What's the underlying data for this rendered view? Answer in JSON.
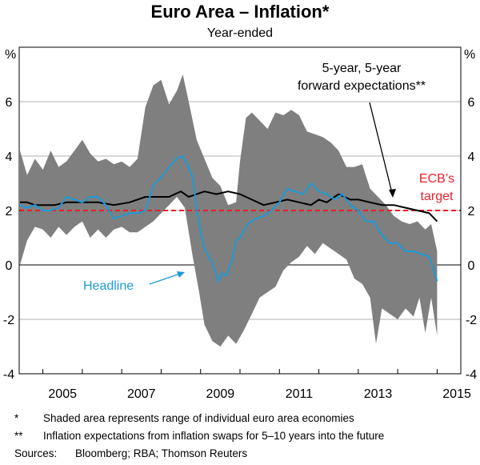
{
  "chart_data": {
    "type": "line",
    "title": "Euro Area – Inflation*",
    "subtitle": "Year-ended",
    "y_unit": "%",
    "ylim": [
      -4,
      8
    ],
    "yticks": [
      -4,
      -2,
      0,
      2,
      4,
      6
    ],
    "xlim": [
      2004.4,
      2015.6
    ],
    "xticks": [
      2005,
      2007,
      2009,
      2011,
      2013,
      2015
    ],
    "target_value": 2,
    "series": [
      {
        "name": "Headline",
        "color": "#1c9ad6",
        "points": [
          [
            2004.42,
            2.2
          ],
          [
            2004.6,
            2.1
          ],
          [
            2004.8,
            2.2
          ],
          [
            2005.0,
            2.0
          ],
          [
            2005.2,
            2.0
          ],
          [
            2005.4,
            2.1
          ],
          [
            2005.6,
            2.5
          ],
          [
            2005.8,
            2.4
          ],
          [
            2006.0,
            2.3
          ],
          [
            2006.2,
            2.5
          ],
          [
            2006.4,
            2.5
          ],
          [
            2006.6,
            2.2
          ],
          [
            2006.8,
            1.7
          ],
          [
            2007.0,
            1.8
          ],
          [
            2007.2,
            1.9
          ],
          [
            2007.4,
            1.9
          ],
          [
            2007.6,
            2.0
          ],
          [
            2007.8,
            2.9
          ],
          [
            2007.9,
            3.1
          ],
          [
            2008.0,
            3.2
          ],
          [
            2008.2,
            3.6
          ],
          [
            2008.4,
            3.9
          ],
          [
            2008.55,
            4.0
          ],
          [
            2008.7,
            3.6
          ],
          [
            2008.8,
            3.2
          ],
          [
            2008.9,
            2.1
          ],
          [
            2009.0,
            1.2
          ],
          [
            2009.1,
            0.6
          ],
          [
            2009.2,
            0.3
          ],
          [
            2009.3,
            0.1
          ],
          [
            2009.45,
            -0.6
          ],
          [
            2009.55,
            -0.3
          ],
          [
            2009.65,
            -0.4
          ],
          [
            2009.8,
            0.2
          ],
          [
            2009.9,
            0.9
          ],
          [
            2010.0,
            1.0
          ],
          [
            2010.2,
            1.5
          ],
          [
            2010.4,
            1.7
          ],
          [
            2010.6,
            1.8
          ],
          [
            2010.8,
            2.0
          ],
          [
            2011.0,
            2.3
          ],
          [
            2011.2,
            2.8
          ],
          [
            2011.4,
            2.7
          ],
          [
            2011.6,
            2.6
          ],
          [
            2011.8,
            3.0
          ],
          [
            2012.0,
            2.7
          ],
          [
            2012.2,
            2.6
          ],
          [
            2012.4,
            2.4
          ],
          [
            2012.6,
            2.6
          ],
          [
            2012.8,
            2.2
          ],
          [
            2013.0,
            2.0
          ],
          [
            2013.2,
            1.6
          ],
          [
            2013.4,
            1.6
          ],
          [
            2013.6,
            1.1
          ],
          [
            2013.8,
            0.8
          ],
          [
            2014.0,
            0.8
          ],
          [
            2014.2,
            0.5
          ],
          [
            2014.4,
            0.5
          ],
          [
            2014.6,
            0.4
          ],
          [
            2014.8,
            0.3
          ],
          [
            2014.92,
            -0.2
          ],
          [
            2015.0,
            -0.6
          ]
        ]
      },
      {
        "name": "5-year, 5-year forward expectations**",
        "color": "#000000",
        "points": [
          [
            2004.42,
            2.3
          ],
          [
            2004.6,
            2.3
          ],
          [
            2004.8,
            2.2
          ],
          [
            2005.0,
            2.2
          ],
          [
            2005.3,
            2.2
          ],
          [
            2005.6,
            2.3
          ],
          [
            2006.0,
            2.3
          ],
          [
            2006.4,
            2.3
          ],
          [
            2006.8,
            2.2
          ],
          [
            2007.2,
            2.3
          ],
          [
            2007.6,
            2.5
          ],
          [
            2007.9,
            2.5
          ],
          [
            2008.2,
            2.5
          ],
          [
            2008.5,
            2.7
          ],
          [
            2008.7,
            2.5
          ],
          [
            2008.9,
            2.6
          ],
          [
            2009.1,
            2.7
          ],
          [
            2009.4,
            2.6
          ],
          [
            2009.7,
            2.7
          ],
          [
            2010.0,
            2.6
          ],
          [
            2010.3,
            2.4
          ],
          [
            2010.6,
            2.2
          ],
          [
            2010.9,
            2.3
          ],
          [
            2011.2,
            2.4
          ],
          [
            2011.5,
            2.3
          ],
          [
            2011.8,
            2.2
          ],
          [
            2012.0,
            2.4
          ],
          [
            2012.2,
            2.3
          ],
          [
            2012.5,
            2.6
          ],
          [
            2012.8,
            2.4
          ],
          [
            2013.0,
            2.4
          ],
          [
            2013.3,
            2.3
          ],
          [
            2013.6,
            2.2
          ],
          [
            2013.9,
            2.2
          ],
          [
            2014.2,
            2.1
          ],
          [
            2014.5,
            2.0
          ],
          [
            2014.8,
            1.9
          ],
          [
            2015.0,
            1.6
          ]
        ]
      }
    ],
    "range_band": {
      "name": "Range of individual euro area economies",
      "color": "#7f7f7f",
      "upper": [
        [
          2004.42,
          4.2
        ],
        [
          2004.6,
          3.3
        ],
        [
          2004.8,
          3.9
        ],
        [
          2005.0,
          3.5
        ],
        [
          2005.2,
          4.2
        ],
        [
          2005.4,
          3.6
        ],
        [
          2005.6,
          3.8
        ],
        [
          2005.8,
          4.2
        ],
        [
          2006.0,
          4.6
        ],
        [
          2006.2,
          4.1
        ],
        [
          2006.4,
          3.8
        ],
        [
          2006.6,
          3.9
        ],
        [
          2006.8,
          3.7
        ],
        [
          2007.0,
          3.8
        ],
        [
          2007.2,
          3.6
        ],
        [
          2007.4,
          3.9
        ],
        [
          2007.6,
          5.8
        ],
        [
          2007.8,
          6.6
        ],
        [
          2008.0,
          6.8
        ],
        [
          2008.2,
          5.9
        ],
        [
          2008.4,
          6.4
        ],
        [
          2008.55,
          7.0
        ],
        [
          2008.7,
          6.0
        ],
        [
          2008.9,
          4.6
        ],
        [
          2009.1,
          3.9
        ],
        [
          2009.3,
          3.2
        ],
        [
          2009.5,
          2.9
        ],
        [
          2009.7,
          2.2
        ],
        [
          2009.9,
          2.3
        ],
        [
          2010.0,
          3.8
        ],
        [
          2010.15,
          5.4
        ],
        [
          2010.3,
          5.6
        ],
        [
          2010.5,
          5.3
        ],
        [
          2010.7,
          5.0
        ],
        [
          2010.9,
          5.6
        ],
        [
          2011.1,
          5.5
        ],
        [
          2011.3,
          5.7
        ],
        [
          2011.5,
          5.5
        ],
        [
          2011.7,
          4.9
        ],
        [
          2011.9,
          4.8
        ],
        [
          2012.1,
          4.7
        ],
        [
          2012.3,
          4.5
        ],
        [
          2012.5,
          4.2
        ],
        [
          2012.7,
          3.6
        ],
        [
          2012.9,
          3.6
        ],
        [
          2013.1,
          3.7
        ],
        [
          2013.3,
          2.8
        ],
        [
          2013.5,
          2.5
        ],
        [
          2013.7,
          2.2
        ],
        [
          2013.9,
          1.8
        ],
        [
          2014.1,
          1.6
        ],
        [
          2014.3,
          1.5
        ],
        [
          2014.5,
          1.6
        ],
        [
          2014.7,
          1.3
        ],
        [
          2014.85,
          1.5
        ],
        [
          2015.0,
          0.5
        ]
      ],
      "lower": [
        [
          2004.42,
          0.0
        ],
        [
          2004.6,
          0.9
        ],
        [
          2004.8,
          1.4
        ],
        [
          2005.0,
          1.3
        ],
        [
          2005.2,
          1.0
        ],
        [
          2005.4,
          1.4
        ],
        [
          2005.6,
          1.1
        ],
        [
          2005.8,
          1.4
        ],
        [
          2006.0,
          1.6
        ],
        [
          2006.2,
          1.0
        ],
        [
          2006.4,
          1.3
        ],
        [
          2006.6,
          1.0
        ],
        [
          2006.8,
          1.3
        ],
        [
          2007.0,
          1.4
        ],
        [
          2007.2,
          1.2
        ],
        [
          2007.4,
          1.2
        ],
        [
          2007.6,
          1.4
        ],
        [
          2007.8,
          1.6
        ],
        [
          2008.0,
          1.9
        ],
        [
          2008.2,
          2.2
        ],
        [
          2008.4,
          2.5
        ],
        [
          2008.6,
          2.1
        ],
        [
          2008.8,
          0.3
        ],
        [
          2008.95,
          -0.9
        ],
        [
          2009.1,
          -2.2
        ],
        [
          2009.3,
          -2.8
        ],
        [
          2009.5,
          -3.0
        ],
        [
          2009.7,
          -2.6
        ],
        [
          2009.9,
          -2.9
        ],
        [
          2010.1,
          -2.4
        ],
        [
          2010.3,
          -1.8
        ],
        [
          2010.5,
          -1.2
        ],
        [
          2010.7,
          -1.0
        ],
        [
          2010.9,
          -0.8
        ],
        [
          2011.1,
          -0.2
        ],
        [
          2011.3,
          0.1
        ],
        [
          2011.5,
          0.3
        ],
        [
          2011.7,
          0.7
        ],
        [
          2011.9,
          0.4
        ],
        [
          2012.1,
          0.8
        ],
        [
          2012.3,
          0.6
        ],
        [
          2012.5,
          0.4
        ],
        [
          2012.7,
          0.2
        ],
        [
          2012.9,
          -0.5
        ],
        [
          2013.1,
          -0.7
        ],
        [
          2013.3,
          -1.2
        ],
        [
          2013.45,
          -2.9
        ],
        [
          2013.6,
          -1.6
        ],
        [
          2013.8,
          -1.8
        ],
        [
          2014.0,
          -2.0
        ],
        [
          2014.2,
          -1.6
        ],
        [
          2014.4,
          -1.9
        ],
        [
          2014.55,
          -1.2
        ],
        [
          2014.7,
          -2.5
        ],
        [
          2014.85,
          -1.2
        ],
        [
          2015.0,
          -2.6
        ]
      ]
    },
    "annotations": {
      "headline_label": "Headline",
      "forward_label_line1": "5-year, 5-year",
      "forward_label_line2": "forward expectations**",
      "target_label_line1": "ECB’s",
      "target_label_line2": "target"
    }
  },
  "colors": {
    "band": "#7f7f7f",
    "headline": "#1c9ad6",
    "forward": "#000000",
    "target": "#e8202a",
    "gridline": "#b3b3b3"
  },
  "footnotes": {
    "note1_mark": "*",
    "note1_text": "Shaded area represents range of individual euro area economies",
    "note2_mark": "**",
    "note2_text": "Inflation expectations from inflation swaps for 5–10 years into the future",
    "sources_label": "Sources:",
    "sources_text": "Bloomberg; RBA; Thomson Reuters"
  }
}
